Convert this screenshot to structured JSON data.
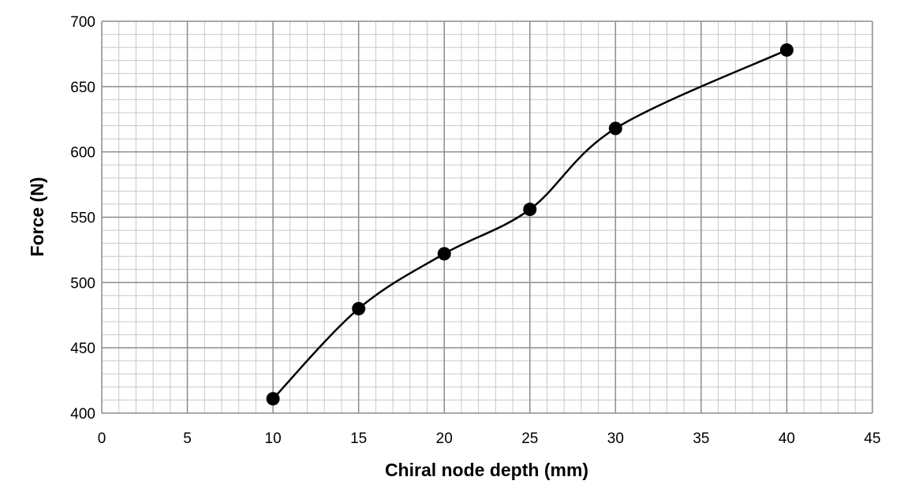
{
  "chart_data": {
    "type": "line",
    "title": "",
    "xlabel": "Chiral node depth (mm)",
    "ylabel": "Force (N)",
    "xlim": [
      0,
      45
    ],
    "ylim": [
      400,
      700
    ],
    "x_major_ticks": [
      0,
      5,
      10,
      15,
      20,
      25,
      30,
      35,
      40,
      45
    ],
    "y_major_ticks": [
      400,
      450,
      500,
      550,
      600,
      650,
      700
    ],
    "x_minor_step": 1,
    "y_minor_step": 10,
    "grid": true,
    "smooth": true,
    "series": [
      {
        "x": [
          10,
          15,
          20,
          25,
          30,
          40
        ],
        "values": [
          411,
          480,
          522,
          556,
          618,
          678
        ],
        "color": "#000000",
        "marker": "circle"
      }
    ]
  }
}
